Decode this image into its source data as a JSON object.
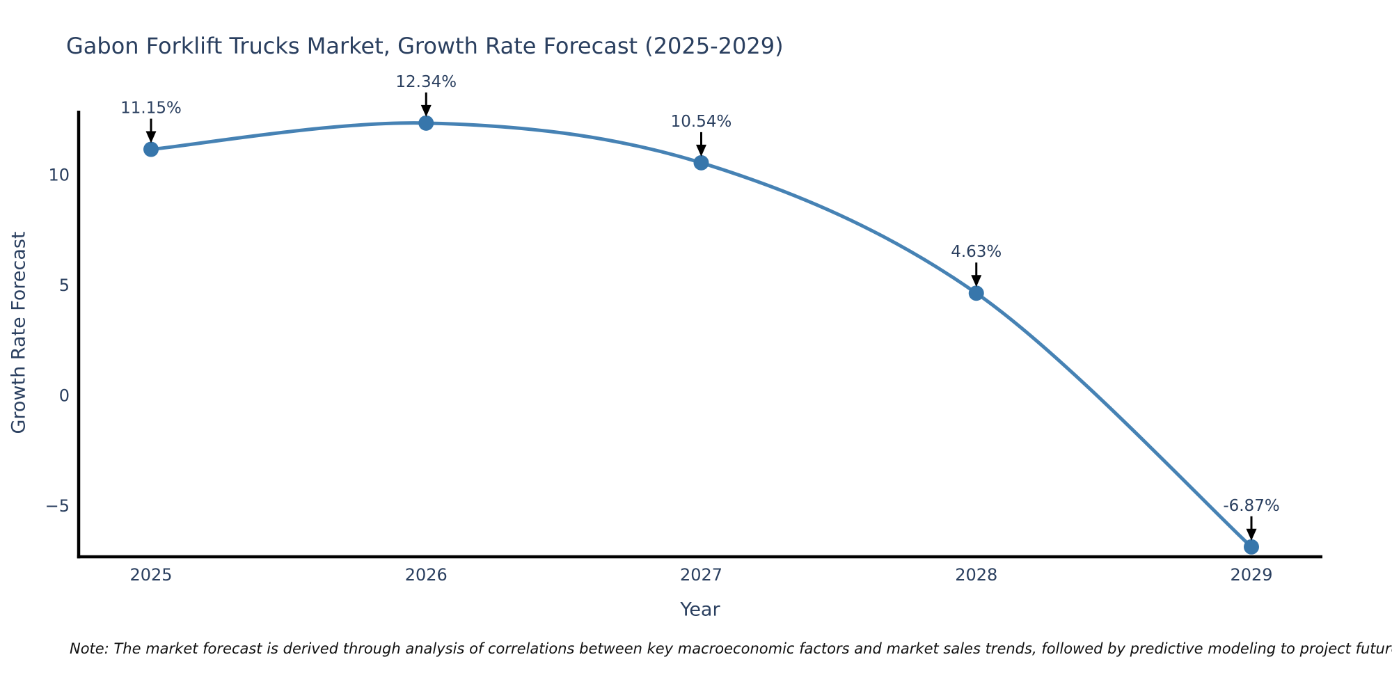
{
  "chart_data": {
    "type": "line",
    "title": "Gabon Forklift Trucks Market, Growth Rate Forecast (2025-2029)",
    "xlabel": "Year",
    "ylabel": "Growth Rate Forecast",
    "x": [
      2025,
      2026,
      2027,
      2028,
      2029
    ],
    "series": [
      {
        "name": "Growth Rate Forecast",
        "values": [
          11.15,
          12.34,
          10.54,
          4.63,
          -6.87
        ],
        "labels": [
          "11.15%",
          "12.34%",
          "10.54%",
          "4.63%",
          "-6.87%"
        ]
      }
    ],
    "xticks": [
      "2025",
      "2026",
      "2027",
      "2028",
      "2029"
    ],
    "yticks": [
      "10",
      "5",
      "0",
      "−5"
    ],
    "ytick_values": [
      10,
      5,
      0,
      -5
    ],
    "ylim": [
      -7.4,
      12.9
    ],
    "line_shape": "spline",
    "grid": false,
    "legend_position": "none",
    "colors": {
      "line": "#4682b4",
      "marker": "#3776ab",
      "arrow": "#000000",
      "spine": "#000000",
      "title": "#2a3f5f",
      "tick": "#2a3f5f",
      "annotation": "#2a3f5f",
      "note": "#111111"
    }
  },
  "note": {
    "text": "Note: The market forecast is derived through analysis of correlations between key macroeconomic factors and market sales trends, followed by predictive modeling to project future sales"
  }
}
